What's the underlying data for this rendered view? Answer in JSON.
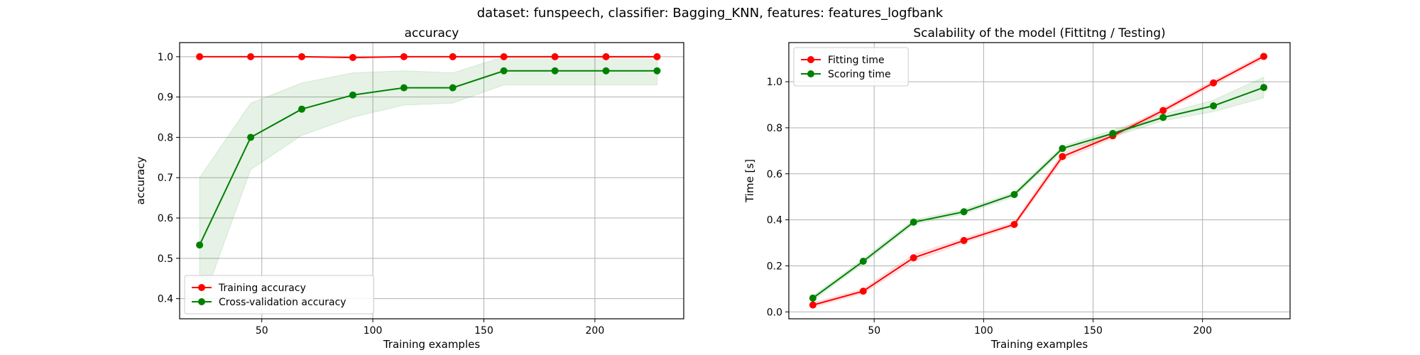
{
  "suptitle": "dataset: funspeech, classifier: Bagging_KNN, features: features_logfbank",
  "colors": {
    "red": "#ff0000",
    "green": "#008000",
    "grid": "#b0b0b0"
  },
  "chart_data": [
    {
      "type": "line",
      "title": "accuracy",
      "xlabel": "Training examples",
      "ylabel": "accuracy",
      "xlim": [
        13,
        240
      ],
      "ylim": [
        0.35,
        1.035
      ],
      "xticks": [
        50,
        100,
        150,
        200
      ],
      "yticks": [
        0.4,
        0.5,
        0.6,
        0.7,
        0.8,
        0.9,
        1.0
      ],
      "ytick_labels": [
        "0.4",
        "0.5",
        "0.6",
        "0.7",
        "0.8",
        "0.9",
        "1.0"
      ],
      "grid": true,
      "legend_placement": "lower-left",
      "x": [
        22,
        45,
        68,
        91,
        114,
        136,
        159,
        182,
        205,
        228
      ],
      "series": [
        {
          "name": "Training accuracy",
          "color": "#ff0000",
          "values": [
            1.0,
            1.0,
            1.0,
            0.998,
            1.0,
            1.0,
            1.0,
            1.0,
            1.0,
            1.0
          ],
          "band_low": [
            1.0,
            1.0,
            1.0,
            0.996,
            1.0,
            1.0,
            1.0,
            1.0,
            1.0,
            1.0
          ],
          "band_high": [
            1.0,
            1.0,
            1.0,
            1.0,
            1.0,
            1.0,
            1.0,
            1.0,
            1.0,
            1.0
          ]
        },
        {
          "name": "Cross-validation accuracy",
          "color": "#008000",
          "values": [
            0.533,
            0.8,
            0.87,
            0.905,
            0.923,
            0.923,
            0.965,
            0.965,
            0.965,
            0.965
          ],
          "band_low": [
            0.37,
            0.72,
            0.805,
            0.85,
            0.88,
            0.885,
            0.93,
            0.93,
            0.93,
            0.93
          ],
          "band_high": [
            0.7,
            0.885,
            0.935,
            0.96,
            0.965,
            0.96,
            1.0,
            1.0,
            1.0,
            1.0
          ]
        }
      ]
    },
    {
      "type": "line",
      "title": "Scalability of the model (Fittitng / Testing)",
      "xlabel": "Training examples",
      "ylabel": "Time [s]",
      "xlim": [
        11,
        240
      ],
      "ylim": [
        -0.03,
        1.17
      ],
      "xticks": [
        50,
        100,
        150,
        200
      ],
      "yticks": [
        0.0,
        0.2,
        0.4,
        0.6,
        0.8,
        1.0
      ],
      "ytick_labels": [
        "0.0",
        "0.2",
        "0.4",
        "0.6",
        "0.8",
        "1.0"
      ],
      "grid": true,
      "legend_placement": "upper-left",
      "x": [
        22,
        45,
        68,
        91,
        114,
        136,
        159,
        182,
        205,
        228
      ],
      "series": [
        {
          "name": "Fitting time",
          "color": "#ff0000",
          "values": [
            0.03,
            0.09,
            0.235,
            0.31,
            0.38,
            0.675,
            0.765,
            0.875,
            0.995,
            1.11
          ],
          "band_low": [
            0.02,
            0.08,
            0.22,
            0.3,
            0.37,
            0.66,
            0.755,
            0.865,
            0.985,
            1.1
          ],
          "band_high": [
            0.04,
            0.1,
            0.25,
            0.32,
            0.39,
            0.69,
            0.775,
            0.885,
            1.005,
            1.12
          ]
        },
        {
          "name": "Scoring time",
          "color": "#008000",
          "values": [
            0.06,
            0.22,
            0.39,
            0.435,
            0.51,
            0.71,
            0.775,
            0.845,
            0.895,
            0.975
          ],
          "band_low": [
            0.05,
            0.21,
            0.38,
            0.425,
            0.5,
            0.7,
            0.76,
            0.83,
            0.87,
            0.93
          ],
          "band_high": [
            0.07,
            0.23,
            0.4,
            0.445,
            0.52,
            0.72,
            0.79,
            0.86,
            0.92,
            1.02
          ]
        }
      ]
    }
  ]
}
